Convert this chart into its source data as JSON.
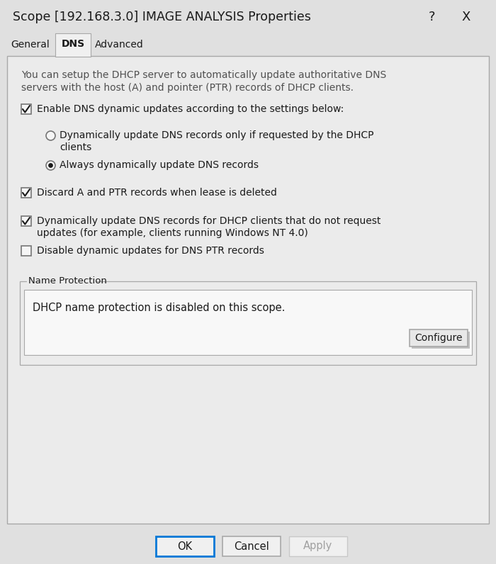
{
  "title": "Scope [192.168.3.0] IMAGE ANALYSIS Properties",
  "bg_color": "#e0e0e0",
  "panel_color": "#ebebeb",
  "white": "#ffffff",
  "tabs": [
    "General",
    "DNS",
    "Advanced"
  ],
  "intro_text_line1": "You can setup the DHCP server to automatically update authoritative DNS",
  "intro_text_line2": "servers with the host (A) and pointer (PTR) records of DHCP clients.",
  "checkbox1_text": "Enable DNS dynamic updates according to the settings below:",
  "checkbox1_checked": true,
  "radio1_line1": "Dynamically update DNS records only if requested by the DHCP",
  "radio1_line2": "clients",
  "radio1_selected": false,
  "radio2_text": "Always dynamically update DNS records",
  "radio2_selected": true,
  "checkbox2_text": "Discard A and PTR records when lease is deleted",
  "checkbox2_checked": true,
  "checkbox3_line1": "Dynamically update DNS records for DHCP clients that do not request",
  "checkbox3_line2": "updates (for example, clients running Windows NT 4.0)",
  "checkbox3_checked": true,
  "checkbox4_text": "Disable dynamic updates for DNS PTR records",
  "checkbox4_checked": false,
  "name_protection_label": "Name Protection",
  "name_protection_text": "DHCP name protection is disabled on this scope.",
  "configure_btn": "Configure",
  "ok_btn": "OK",
  "cancel_btn": "Cancel",
  "apply_btn": "Apply",
  "text_color": "#1a1a1a",
  "gray_text": "#505050",
  "disabled_color": "#a0a0a0",
  "border_color": "#a8a8a8",
  "ok_border_color": "#0078d7",
  "check_border": "#767676",
  "tab_active_bg": "#f0f0f0"
}
